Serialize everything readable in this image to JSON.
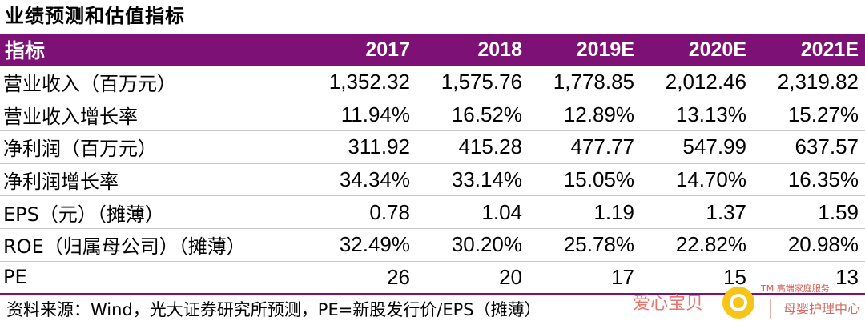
{
  "title": "业绩预测和估值指标",
  "header": [
    "指标",
    "2017",
    "2018",
    "2019E",
    "2020E",
    "2021E"
  ],
  "rows": [
    [
      "营业收入（百万元）",
      "1,352.32",
      "1,575.76",
      "1,778.85",
      "2,012.46",
      "2,319.82"
    ],
    [
      "营业收入增长率",
      "11.94%",
      "16.52%",
      "12.89%",
      "13.13%",
      "15.27%"
    ],
    [
      "净利润（百万元）",
      "311.92",
      "415.28",
      "477.77",
      "547.99",
      "637.57"
    ],
    [
      "净利润增长率",
      "34.34%",
      "33.14%",
      "15.05%",
      "14.70%",
      "16.35%"
    ],
    [
      "EPS（元）（摊薄）",
      "0.78",
      "1.04",
      "1.19",
      "1.37",
      "1.59"
    ],
    [
      "ROE（归属母公司）（摊薄）",
      "32.49%",
      "30.20%",
      "25.78%",
      "22.82%",
      "20.98%"
    ],
    [
      "PE",
      "26",
      "20",
      "17",
      "15",
      "13"
    ]
  ],
  "source": "资料来源：Wind，光大证券研究所预测，PE=新股发行价/EPS（摊薄）",
  "watermark": {
    "left_text": "爱心宝贝",
    "small_text": "TM 高端家庭服务",
    "right_text": "母婴护理中心"
  },
  "colors": {
    "header_bg": "#7d1175",
    "header_text": "#ffffff",
    "watermark": "#e8746e",
    "icon_yellow": "#f5c518"
  }
}
